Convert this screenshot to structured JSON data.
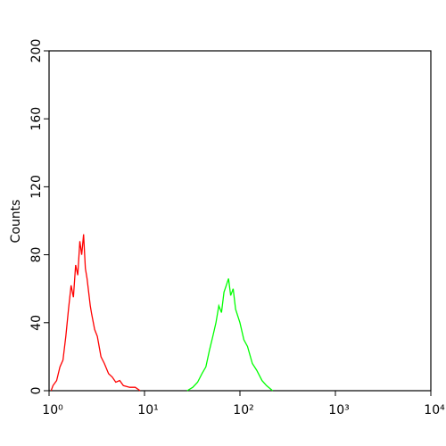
{
  "chart_data": {
    "type": "line",
    "xscale": "log",
    "ylabel": "Counts",
    "xlim": [
      1,
      10000
    ],
    "ylim": [
      0,
      200
    ],
    "xticks": [
      {
        "value": 1,
        "label": "10⁰"
      },
      {
        "value": 10,
        "label": "10¹"
      },
      {
        "value": 100,
        "label": "10²"
      },
      {
        "value": 1000,
        "label": "10³"
      },
      {
        "value": 10000,
        "label": "10⁴"
      }
    ],
    "yticks": [
      0,
      40,
      80,
      120,
      160,
      200
    ],
    "series": [
      {
        "color": "#ff0000",
        "x": [
          1.05,
          1.1,
          1.2,
          1.3,
          1.4,
          1.5,
          1.6,
          1.7,
          1.8,
          1.9,
          2.0,
          2.1,
          2.2,
          2.3,
          2.4,
          2.5,
          2.6,
          2.7,
          2.8,
          3.0,
          3.2,
          3.5,
          3.8,
          4.2,
          4.6,
          5.0,
          5.5,
          6.0,
          7.0,
          8.0,
          9.0
        ],
        "values": [
          0,
          3,
          6,
          14,
          18,
          32,
          48,
          62,
          55,
          74,
          68,
          88,
          80,
          92,
          72,
          66,
          58,
          50,
          45,
          36,
          32,
          20,
          16,
          10,
          8,
          5,
          6,
          3,
          2,
          2,
          0
        ]
      },
      {
        "color": "#00ff00",
        "x": [
          28,
          32,
          36,
          40,
          44,
          48,
          52,
          56,
          60,
          64,
          68,
          72,
          76,
          80,
          85,
          90,
          100,
          110,
          120,
          135,
          150,
          170,
          190,
          220
        ],
        "values": [
          0,
          2,
          5,
          10,
          14,
          24,
          32,
          40,
          50,
          46,
          58,
          62,
          66,
          56,
          60,
          48,
          40,
          30,
          26,
          16,
          12,
          6,
          3,
          0
        ]
      }
    ]
  }
}
